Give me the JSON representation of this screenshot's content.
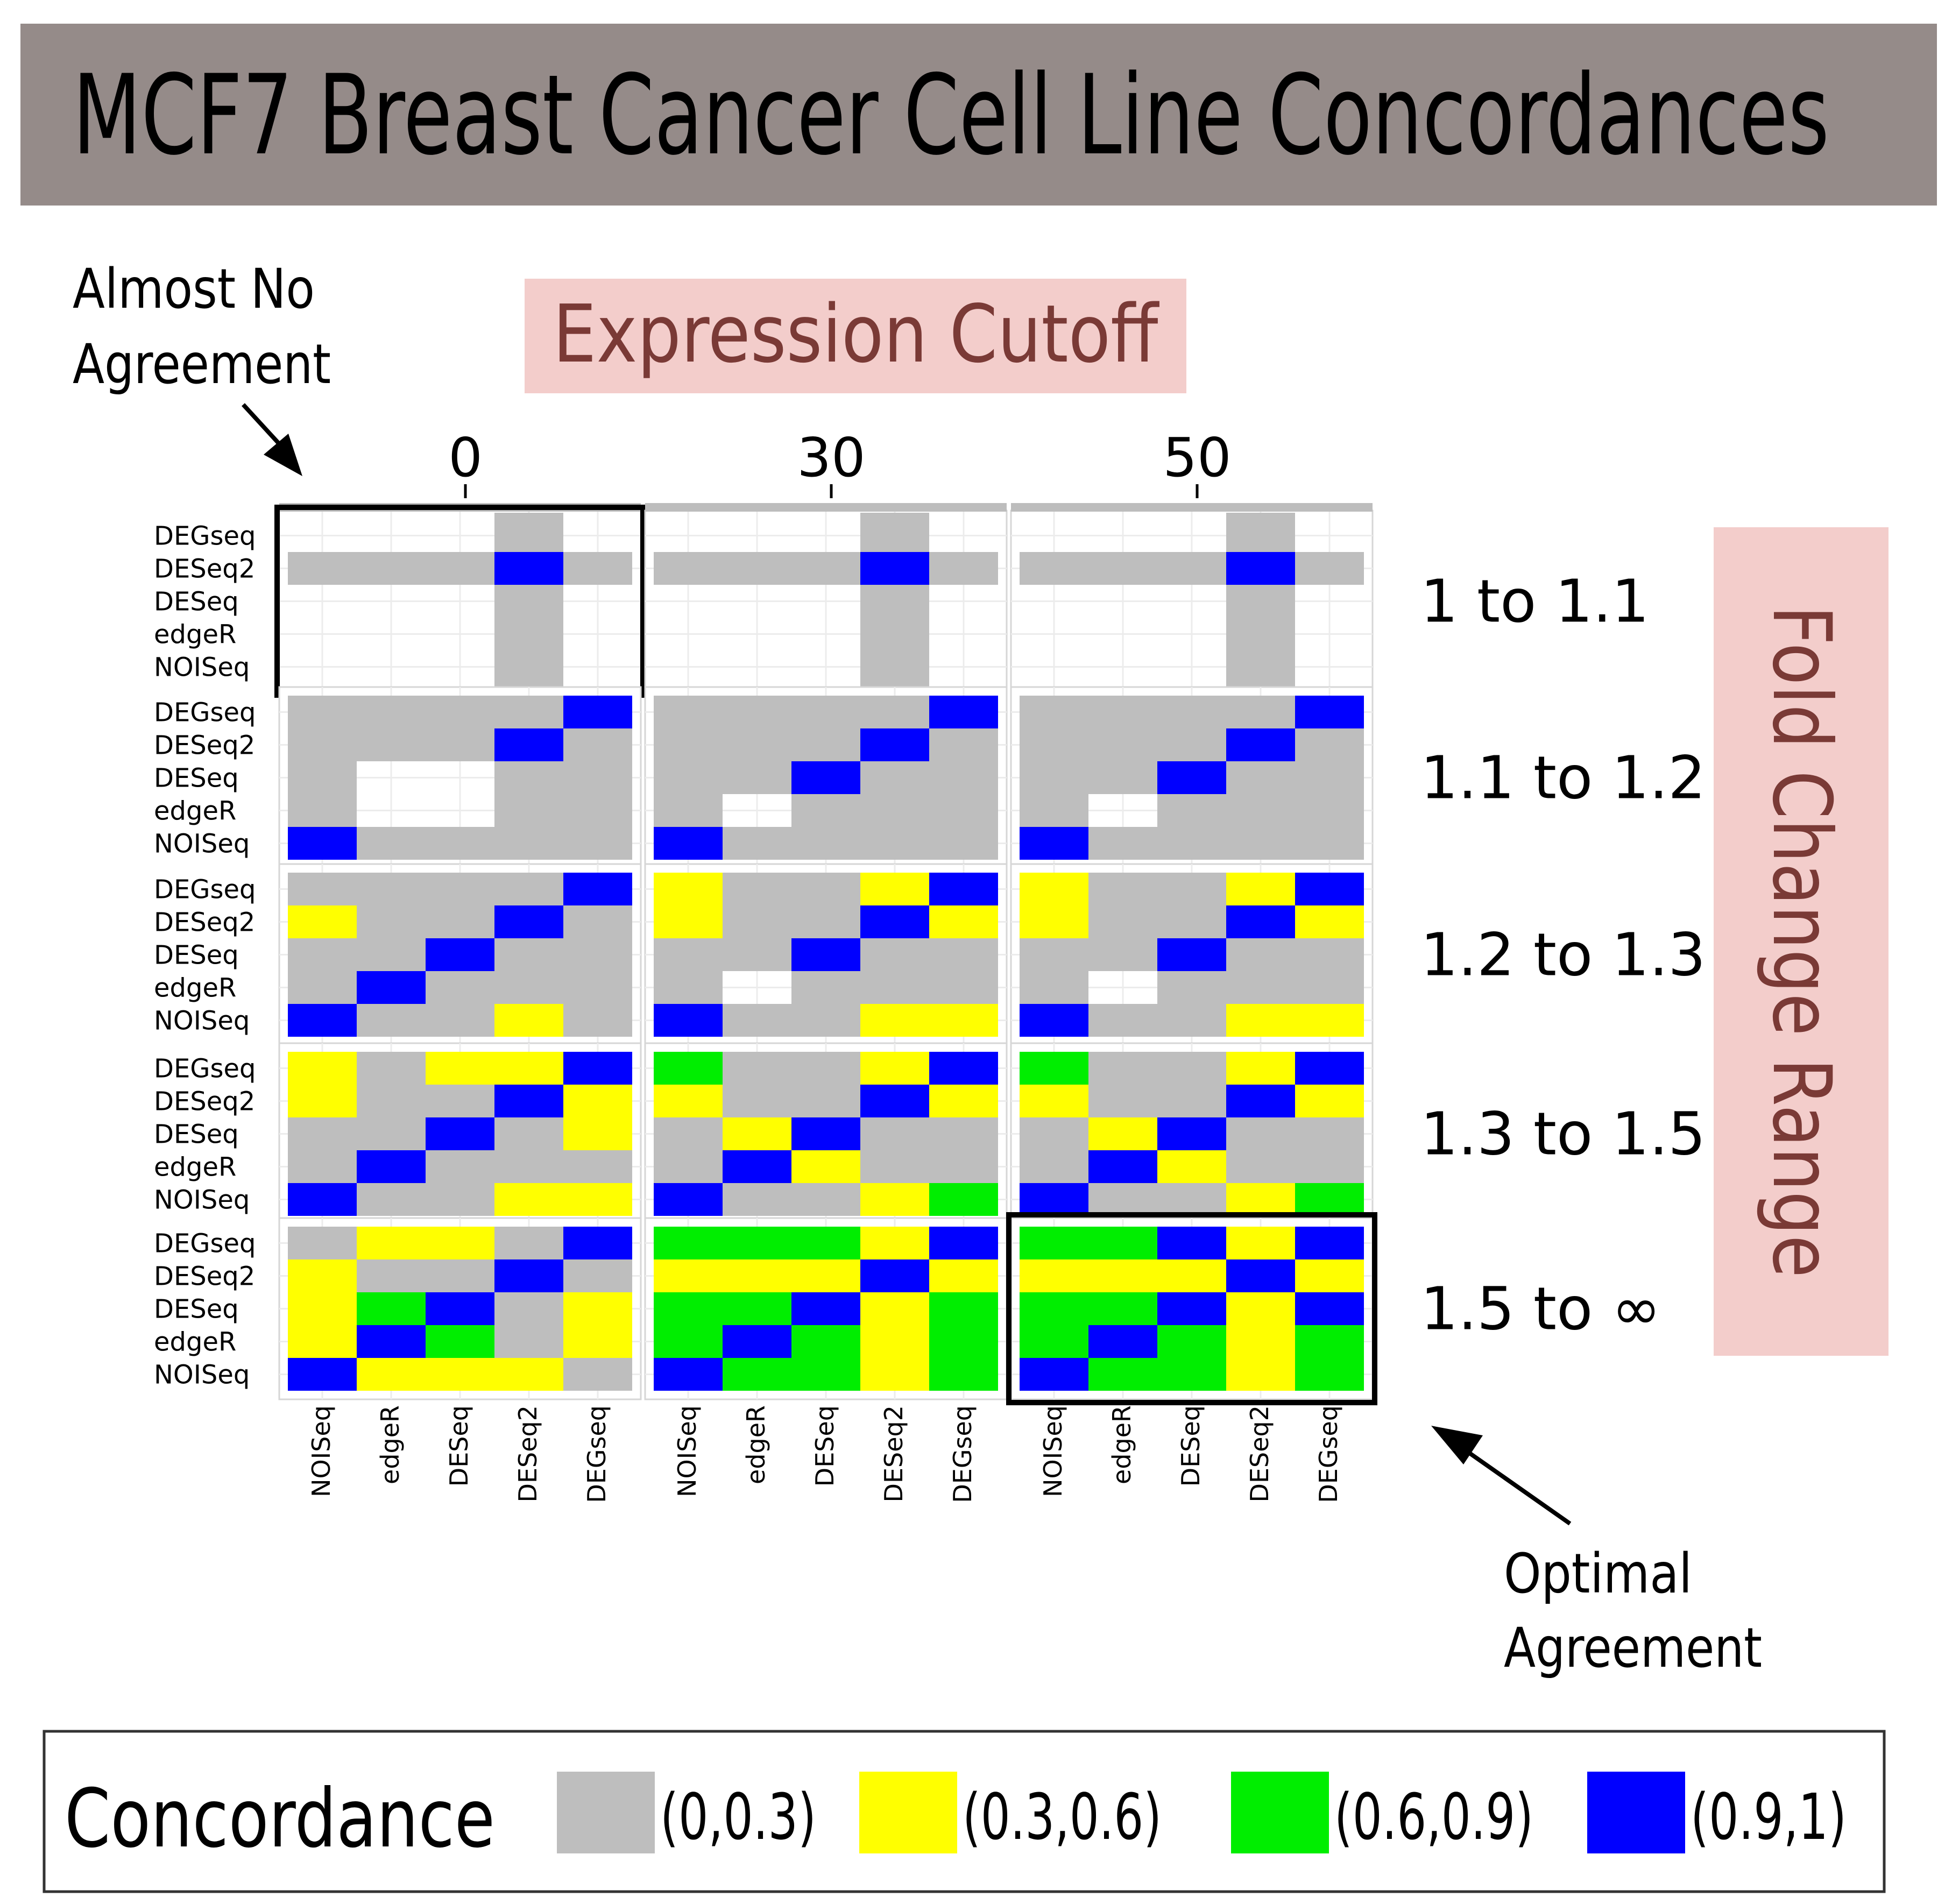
{
  "title": "MCF7 Breast Cancer Cell Line Concordances",
  "expression_cutoff_label": "Expression Cutoff",
  "fold_change_label": "Fold Change Range",
  "annotation_left": [
    "Almost No",
    "Agreement"
  ],
  "annotation_right": [
    "Optimal",
    "Agreement"
  ],
  "legend": {
    "title": "Concordance",
    "items": [
      {
        "label": "(0,0.3)",
        "color": "#bebebe"
      },
      {
        "label": "(0.3,0.6)",
        "color": "#ffff00"
      },
      {
        "label": "(0.6,0.9)",
        "color": "#00ee00"
      },
      {
        "label": "(0.9,1)",
        "color": "#0000ff"
      }
    ]
  },
  "colors": {
    "gray": "#bebebe",
    "yellow": "#ffff00",
    "green": "#00ee00",
    "blue": "#0000ff",
    "title_bar": "#958b89",
    "pink": "#f3cdcb",
    "pink_text": "#7a3a36",
    "strip": "#bdbdbd"
  },
  "chart_data": {
    "type": "heatmap",
    "columns": [
      "0",
      "30",
      "50"
    ],
    "rows": [
      "1 to 1.1",
      "1.1 to 1.2",
      "1.2 to 1.3",
      "1.3 to 1.5",
      "1.5 to ∞"
    ],
    "x_labels": [
      "NOISeq",
      "edgeR",
      "DESeq",
      "DESeq2",
      "DEGseq"
    ],
    "y_labels": [
      "DEGseq",
      "DESeq2",
      "DESeq",
      "edgeR",
      "NOISeq"
    ],
    "value_codes": {
      "G": "(0,0.3)",
      "Y": "(0.3,0.6)",
      "N": "(0.6,0.9)",
      "B": "(0.9,1)",
      ".": "empty"
    },
    "highlighted": [
      [
        0,
        0
      ],
      [
        4,
        2
      ]
    ],
    "panels": [
      [
        [
          "...G.",
          "GGGBG",
          "...G.",
          "...G.",
          "...G."
        ],
        [
          "...G.",
          "GGGBG",
          "...G.",
          "...G.",
          "...G."
        ],
        [
          "...G.",
          "GGGBG",
          "...G.",
          "...G.",
          "...G."
        ]
      ],
      [
        [
          "GGGGB",
          "GGGBG",
          "G..GG",
          "G..GG",
          "BGGGG"
        ],
        [
          "GGGGB",
          "GGGBG",
          "GGBGG",
          "G.GGG",
          "BGGGG"
        ],
        [
          "GGGGB",
          "GGGBG",
          "GGBGG",
          "G.GGG",
          "BGGGG"
        ]
      ],
      [
        [
          "GGGGB",
          "YGGBG",
          "GGBGG",
          "GBGGG",
          "BGGYG"
        ],
        [
          "YGGYB",
          "YGGBY",
          "GGBGG",
          "G.GGG",
          "BGGYY"
        ],
        [
          "YGGYB",
          "YGGBY",
          "GGBGG",
          "G.GGG",
          "BGGYY"
        ]
      ],
      [
        [
          "YGYYB",
          "YGGBY",
          "GGBGY",
          "GBGGG",
          "BGGYY"
        ],
        [
          "NGGYB",
          "YGGBY",
          "GYBGG",
          "GBYGG",
          "BGGYN"
        ],
        [
          "NGGYB",
          "YGGBY",
          "GYBGG",
          "GBYGG",
          "BGGYN"
        ]
      ],
      [
        [
          "GYYGB",
          "YGGBG",
          "YNBGY",
          "YBNGY",
          "BYYYG"
        ],
        [
          "NNNYB",
          "YYYBY",
          "NNBYN",
          "NBNYN",
          "BNNYN"
        ],
        [
          "NNBYB",
          "YYYBY",
          "NNBYB",
          "NBNYN",
          "BNNYN"
        ]
      ]
    ]
  }
}
